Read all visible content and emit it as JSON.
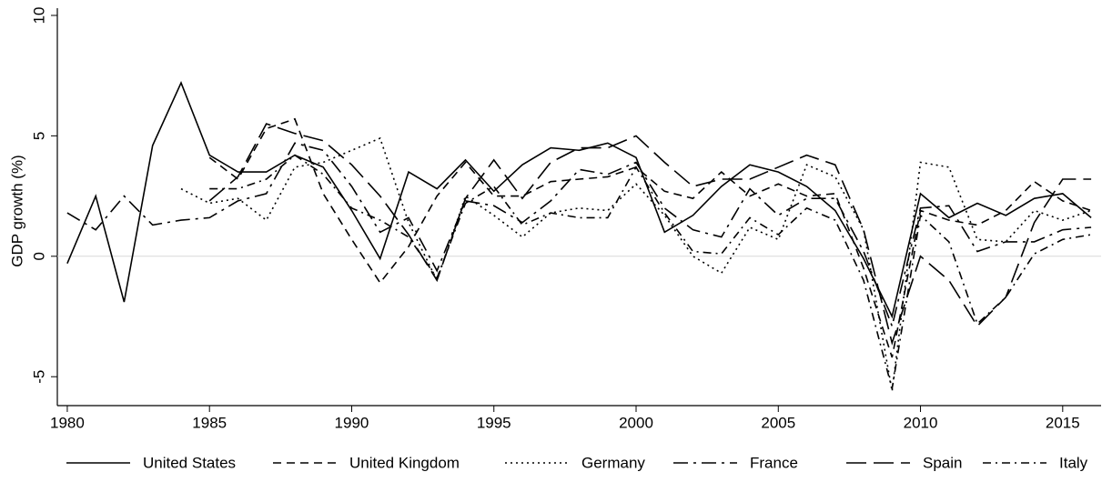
{
  "chart_data": {
    "type": "line",
    "y_label": "GDP growth (%)",
    "x": [
      1980,
      1981,
      1982,
      1983,
      1984,
      1985,
      1986,
      1987,
      1988,
      1989,
      1990,
      1991,
      1992,
      1993,
      1994,
      1995,
      1996,
      1997,
      1998,
      1999,
      2000,
      2001,
      2002,
      2003,
      2004,
      2005,
      2006,
      2007,
      2008,
      2009,
      2010,
      2011,
      2012,
      2013,
      2014,
      2015,
      2016
    ],
    "series": [
      {
        "name": "United States",
        "color": "#000000",
        "values": [
          -0.3,
          2.5,
          -1.9,
          4.6,
          7.2,
          4.2,
          3.5,
          3.5,
          4.2,
          3.7,
          1.9,
          -0.1,
          3.5,
          2.8,
          4.0,
          2.7,
          3.8,
          4.5,
          4.4,
          4.7,
          4.1,
          1.0,
          1.7,
          2.9,
          3.8,
          3.5,
          2.9,
          1.9,
          -0.1,
          -2.5,
          2.6,
          1.6,
          2.2,
          1.7,
          2.4,
          2.6,
          1.6
        ]
      },
      {
        "name": "United Kingdom",
        "color": "#000000",
        "values": [
          null,
          null,
          null,
          null,
          null,
          4.1,
          3.2,
          5.3,
          5.7,
          2.6,
          0.7,
          -1.1,
          0.4,
          2.5,
          3.9,
          2.5,
          2.5,
          3.1,
          3.2,
          3.3,
          3.7,
          2.7,
          2.4,
          3.5,
          2.5,
          3.0,
          2.5,
          2.6,
          -0.5,
          -4.2,
          1.9,
          1.5,
          1.3,
          1.9,
          3.1,
          2.3,
          1.9
        ]
      },
      {
        "name": "Germany",
        "color": "#000000",
        "values": [
          null,
          null,
          null,
          null,
          2.8,
          2.2,
          2.4,
          1.5,
          3.7,
          3.9,
          4.4,
          4.9,
          1.4,
          -1.0,
          2.5,
          1.7,
          0.8,
          1.8,
          2.0,
          1.9,
          3.0,
          1.7,
          0.0,
          -0.7,
          1.2,
          0.7,
          3.8,
          3.3,
          1.1,
          -5.6,
          3.9,
          3.7,
          0.7,
          0.6,
          1.9,
          1.5,
          1.9
        ]
      },
      {
        "name": "France",
        "color": "#000000",
        "values": [
          1.8,
          1.1,
          2.5,
          1.3,
          1.5,
          1.6,
          2.3,
          2.6,
          4.7,
          4.4,
          2.9,
          1.0,
          1.6,
          -0.6,
          2.3,
          2.1,
          1.4,
          2.3,
          3.6,
          3.4,
          3.9,
          2.0,
          1.1,
          0.8,
          2.8,
          1.7,
          2.4,
          2.4,
          0.2,
          -2.9,
          2.0,
          2.1,
          0.2,
          0.6,
          0.6,
          1.1,
          1.2
        ]
      },
      {
        "name": "Spain",
        "color": "#000000",
        "values": [
          null,
          null,
          null,
          null,
          null,
          2.3,
          3.3,
          5.5,
          5.1,
          4.8,
          3.8,
          2.5,
          0.9,
          -1.0,
          2.4,
          4.0,
          2.4,
          3.9,
          4.5,
          4.5,
          5.0,
          3.9,
          2.9,
          3.2,
          3.2,
          3.7,
          4.2,
          3.8,
          1.1,
          -3.6,
          0.0,
          -1.0,
          -2.9,
          -1.7,
          1.4,
          3.2,
          3.2
        ]
      },
      {
        "name": "Italy",
        "color": "#000000",
        "values": [
          null,
          null,
          null,
          null,
          null,
          2.8,
          2.8,
          3.2,
          4.2,
          3.4,
          2.0,
          1.5,
          0.8,
          -0.9,
          2.2,
          2.9,
          1.3,
          1.8,
          1.6,
          1.6,
          3.7,
          1.8,
          0.2,
          0.1,
          1.6,
          0.9,
          2.0,
          1.5,
          -1.0,
          -5.5,
          1.7,
          0.6,
          -2.8,
          -1.7,
          0.1,
          0.7,
          0.9
        ]
      }
    ],
    "xlim": [
      1979.65,
      2016.35
    ],
    "xticks": [
      1980,
      1985,
      1990,
      1995,
      2000,
      2005,
      2010,
      2015
    ],
    "ylim": [
      -6.2,
      10.3
    ],
    "yticks": [
      -5,
      0,
      5,
      10
    ],
    "zero_line": true,
    "legend": "bottom"
  }
}
